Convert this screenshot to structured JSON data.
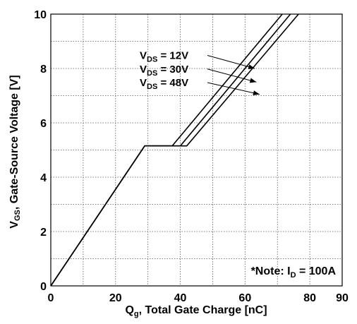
{
  "chart_data": {
    "type": "line",
    "xlabel": {
      "main": "Q",
      "sub": "g",
      "rest": ", Total Gate Charge [nC]"
    },
    "ylabel": {
      "main": "V",
      "sub": "GS",
      "rest": ", Gate-Source Voltage [V]"
    },
    "xlim": [
      0,
      90
    ],
    "ylim": [
      0,
      10
    ],
    "xticks": [
      0,
      20,
      40,
      60,
      80,
      90
    ],
    "yticks": [
      0,
      2,
      4,
      6,
      8,
      10
    ],
    "xgrid": [
      10,
      20,
      30,
      40,
      50,
      60,
      70,
      80
    ],
    "ygrid": [
      1,
      2,
      3,
      4,
      5,
      6,
      7,
      8,
      9
    ],
    "grid": true,
    "series": [
      {
        "name": {
          "main": "V",
          "sub": "DS",
          "rest": " = 12V"
        },
        "points": [
          [
            0,
            0
          ],
          [
            29,
            5.15
          ],
          [
            37.5,
            5.15
          ],
          [
            71.5,
            10
          ]
        ],
        "label_y": 8.35,
        "arrow_to": [
          63,
          8.0
        ]
      },
      {
        "name": {
          "main": "V",
          "sub": "DS",
          "rest": " = 30V"
        },
        "points": [
          [
            0,
            0
          ],
          [
            29,
            5.15
          ],
          [
            40,
            5.15
          ],
          [
            74,
            10
          ]
        ],
        "label_y": 7.85,
        "arrow_to": [
          63.5,
          7.5
        ]
      },
      {
        "name": {
          "main": "V",
          "sub": "DS",
          "rest": " = 48V"
        },
        "points": [
          [
            0,
            0
          ],
          [
            29,
            5.15
          ],
          [
            42,
            5.15
          ],
          [
            76.5,
            10
          ]
        ],
        "label_y": 7.35,
        "arrow_to": [
          64.5,
          7.05
        ]
      }
    ],
    "annotation": {
      "prefix": "*Note: I",
      "sub": "D",
      "rest": " = 100A"
    }
  }
}
